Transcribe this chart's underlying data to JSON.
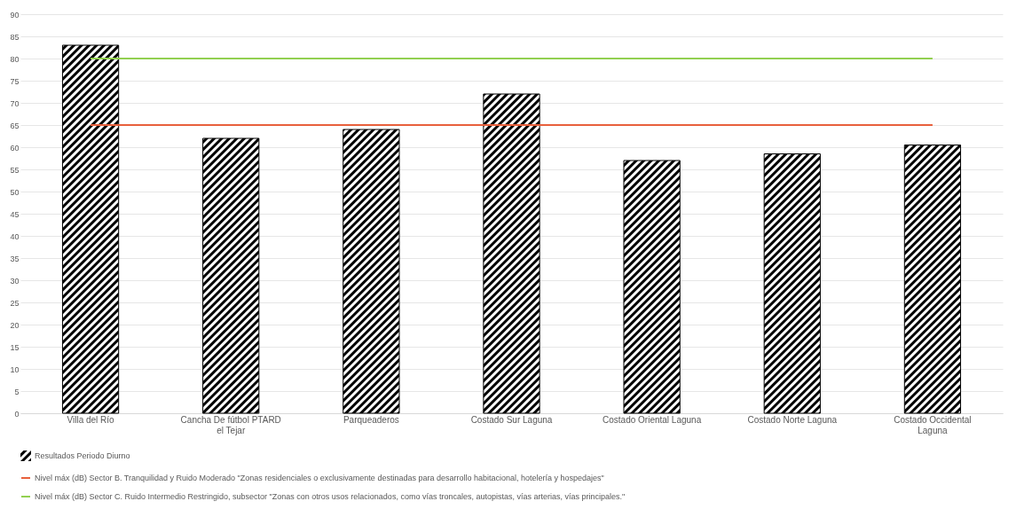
{
  "chart_data": {
    "type": "bar",
    "categories": [
      "Villa del Río",
      "Cancha De fútbol PTARD el Tejar",
      "Parqueaderos",
      "Costado Sur Laguna",
      "Costado Oriental Laguna",
      "Costado Norte Laguna",
      "Costado Occidental Laguna"
    ],
    "series": [
      {
        "name": "Resultados Periodo Diurno",
        "color": "#000000",
        "values": [
          83,
          62,
          64,
          72,
          57,
          58.5,
          60.5
        ]
      },
      {
        "name": "Nivel máx (dB) Sector B. Tranquilidad y Ruido Moderado \"Zonas residenciales o exclusivamente destinadas para desarrollo habitacional, hotelería y hospedajes\"",
        "type": "line",
        "color": "#e8603c",
        "values": [
          65,
          65,
          65,
          65,
          65,
          65,
          65
        ]
      },
      {
        "name": "Nivel máx (dB) Sector C. Ruido Intermedio Restringido, subsector \"Zonas con otros usos relacionados, como vías troncales, autopistas, vías arterias, vías principales.\"",
        "type": "line",
        "color": "#92d050",
        "values": [
          80,
          80,
          80,
          80,
          80,
          80,
          80
        ]
      }
    ],
    "ylim": [
      0,
      90
    ],
    "yticks": [
      0,
      5,
      10,
      15,
      20,
      25,
      30,
      35,
      40,
      45,
      50,
      55,
      60,
      65,
      70,
      75,
      80,
      85,
      90
    ],
    "grid": "y",
    "legend": "bottom"
  }
}
